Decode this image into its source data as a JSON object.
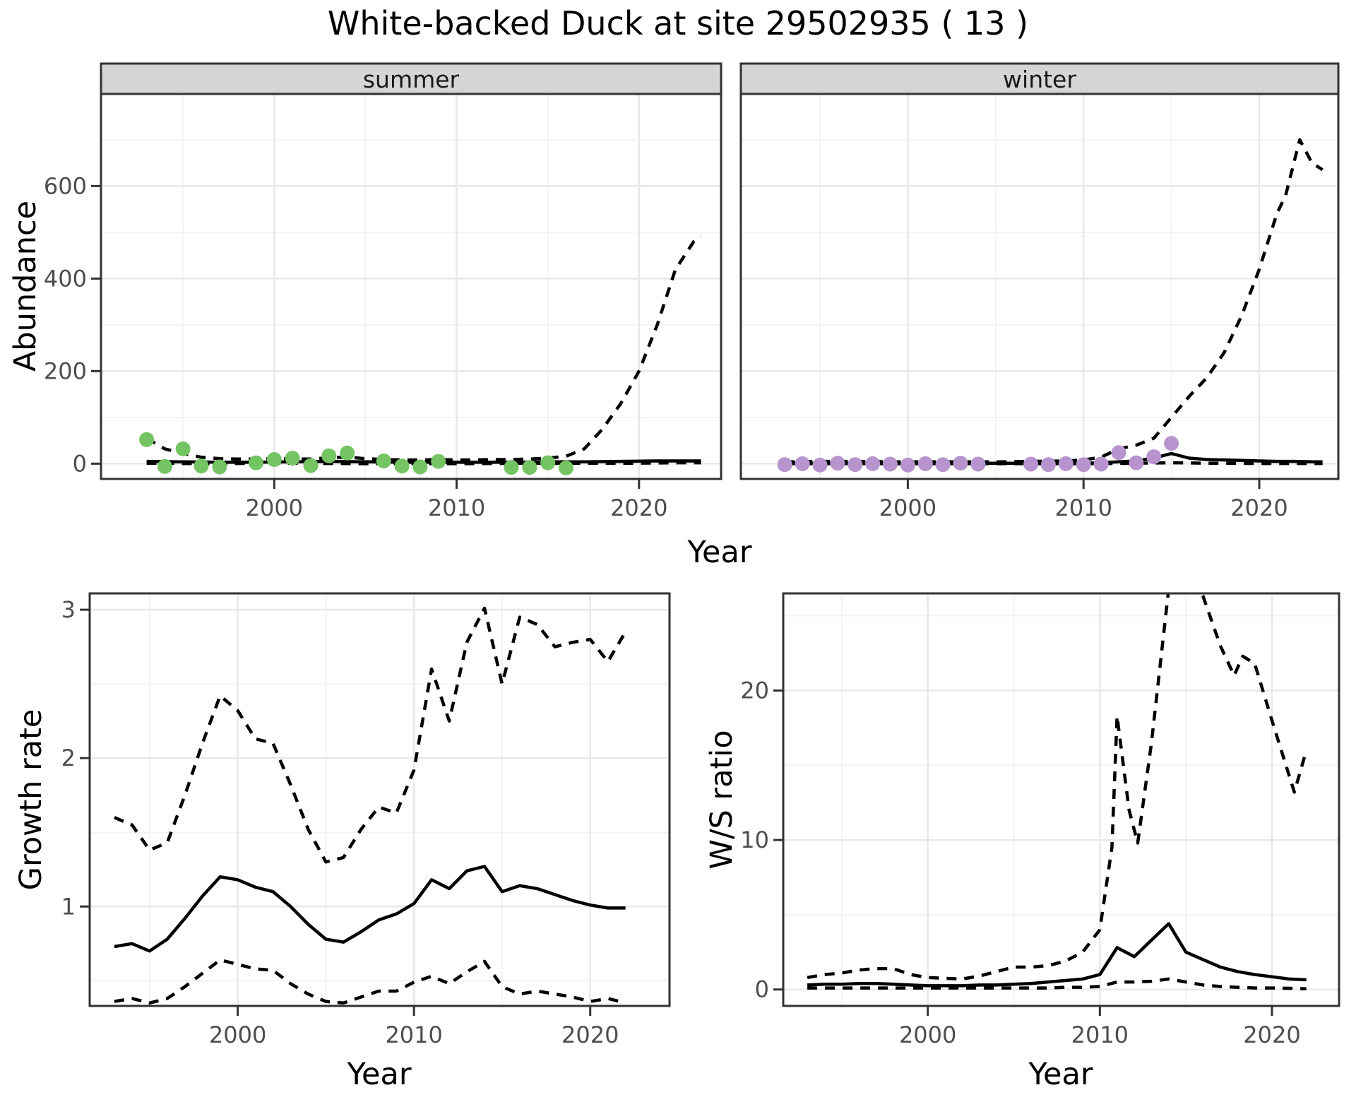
{
  "title": "White-backed Duck at site 29502935 ( 13 )",
  "facets": {
    "summer": "summer",
    "winter": "winter"
  },
  "axis_titles": {
    "abundance": "Abundance",
    "year_top": "Year",
    "growth_rate": "Growth rate",
    "year_growth": "Year",
    "ws_ratio": "W/S ratio",
    "year_ws": "Year"
  },
  "colors": {
    "summer_point": "#74C464",
    "winter_point": "#B794CE",
    "line": "#000000",
    "strip_fill": "#D5D5D5",
    "panel_border": "#333333",
    "grid_major": "#E8E8E8",
    "grid_minor": "#F2F2F2",
    "tick_text": "#4D4D4D"
  },
  "chart_data": [
    {
      "id": "abundance-summer",
      "type": "line",
      "facet_label": "summer",
      "ylabel": "Abundance",
      "xlabel": "Year",
      "xlim": [
        1990.5,
        2024.5
      ],
      "ylim": [
        -33,
        799
      ],
      "x_ticks": {
        "values": [
          2000,
          2010,
          2020
        ],
        "labels": [
          "2000",
          "2010",
          "2020"
        ]
      },
      "x_minor": [
        1995,
        2005,
        2015
      ],
      "y_ticks": {
        "values": [
          0,
          200,
          400,
          600
        ],
        "labels": [
          "0",
          "200",
          "400",
          "600"
        ],
        "show_labels": true
      },
      "y_minor": [
        100,
        300,
        500,
        700
      ],
      "grid": true,
      "legend": "none",
      "series": [
        {
          "name": "median",
          "style": "solid",
          "x": [
            1993,
            1995,
            1997,
            1999,
            2001,
            2003,
            2005,
            2007,
            2009,
            2011,
            2013,
            2015,
            2017,
            2019,
            2021,
            2023.4
          ],
          "y": [
            5,
            4,
            3,
            3,
            4,
            5,
            4,
            3,
            3,
            3,
            3,
            4,
            4,
            5,
            6,
            6
          ]
        },
        {
          "name": "upper-ci",
          "style": "dashed",
          "x": [
            1993,
            1994,
            1995,
            1996,
            1997,
            1998,
            1999,
            2000,
            2001,
            2002,
            2003,
            2004,
            2005,
            2006,
            2007,
            2008,
            2009,
            2010,
            2011,
            2012,
            2013,
            2014,
            2015,
            2016,
            2017,
            2018,
            2019,
            2020,
            2021,
            2022,
            2023,
            2023.4
          ],
          "y": [
            55,
            32,
            22,
            14,
            11,
            10,
            10,
            11,
            10,
            10,
            13,
            14,
            11,
            9,
            8,
            8,
            9,
            8,
            8,
            9,
            9,
            10,
            12,
            16,
            32,
            75,
            130,
            200,
            300,
            420,
            480,
            490
          ]
        },
        {
          "name": "lower-ci",
          "style": "dashed",
          "x": [
            1993,
            1996,
            2000,
            2005,
            2010,
            2015,
            2018,
            2020,
            2022,
            2023.4
          ],
          "y": [
            1,
            0,
            1,
            0,
            0,
            1,
            1,
            1,
            2,
            2
          ]
        }
      ],
      "points": {
        "name": "summer-observations",
        "color": "#74C464",
        "x": [
          1993,
          1994,
          1995,
          1996,
          1997,
          1999,
          2000,
          2001,
          2002,
          2003,
          2004,
          2006,
          2007,
          2008,
          2009,
          2013,
          2014,
          2015,
          2016
        ],
        "y": [
          52,
          -6,
          32,
          -5,
          -7,
          2,
          9,
          12,
          -4,
          17,
          23,
          6,
          -5,
          -7,
          5,
          -8,
          -8,
          2,
          -9
        ]
      }
    },
    {
      "id": "abundance-winter",
      "type": "line",
      "facet_label": "winter",
      "ylabel": "Abundance",
      "xlabel": "Year",
      "xlim": [
        1990.5,
        2024.5
      ],
      "ylim": [
        -33,
        799
      ],
      "x_ticks": {
        "values": [
          2000,
          2010,
          2020
        ],
        "labels": [
          "2000",
          "2010",
          "2020"
        ]
      },
      "x_minor": [
        1995,
        2005,
        2015
      ],
      "y_ticks": {
        "values": [
          0,
          200,
          400,
          600
        ],
        "labels": [
          "0",
          "200",
          "400",
          "600"
        ],
        "show_labels": false
      },
      "y_minor": [
        100,
        300,
        500,
        700
      ],
      "grid": true,
      "legend": "none",
      "series": [
        {
          "name": "median",
          "style": "solid",
          "x": [
            1993,
            1996,
            1999,
            2002,
            2005,
            2008,
            2010,
            2011,
            2012,
            2013,
            2014,
            2015,
            2016,
            2017,
            2018,
            2019,
            2020,
            2021,
            2022,
            2023,
            2023.6
          ],
          "y": [
            1,
            1,
            1,
            1,
            1,
            1,
            1,
            2,
            4,
            6,
            12,
            22,
            12,
            9,
            8,
            7,
            6,
            5,
            5,
            4,
            4
          ]
        },
        {
          "name": "upper-ci",
          "style": "dashed",
          "x": [
            1993,
            1995,
            1997,
            1999,
            2001,
            2003,
            2005,
            2007,
            2009,
            2010,
            2011,
            2012,
            2013,
            2014,
            2015,
            2016,
            2017,
            2018,
            2019,
            2020,
            2021,
            2021.5,
            2022.3,
            2023,
            2023.6
          ],
          "y": [
            4,
            5,
            5,
            4,
            4,
            4,
            4,
            5,
            6,
            8,
            14,
            32,
            40,
            55,
            100,
            145,
            185,
            240,
            320,
            420,
            540,
            580,
            700,
            650,
            635
          ]
        },
        {
          "name": "lower-ci",
          "style": "dashed",
          "x": [
            1993,
            1998,
            2003,
            2008,
            2011,
            2013,
            2015,
            2017,
            2020,
            2023.6
          ],
          "y": [
            0,
            0,
            0,
            0,
            0,
            1,
            2,
            1,
            0.5,
            0.5
          ]
        }
      ],
      "points": {
        "name": "winter-observations",
        "color": "#B794CE",
        "x": [
          1993,
          1994,
          1995,
          1996,
          1997,
          1998,
          1999,
          2000,
          2001,
          2002,
          2003,
          2004,
          2007,
          2008,
          2009,
          2010,
          2011,
          2012,
          2013,
          2014,
          2015
        ],
        "y": [
          -2,
          0,
          -3,
          1,
          -2,
          0,
          -1,
          -3,
          0,
          -2,
          1,
          -1,
          -1,
          -2,
          0,
          -2,
          -1,
          24,
          2,
          15,
          44
        ]
      }
    },
    {
      "id": "growth-rate",
      "type": "line",
      "facet_label": "",
      "ylabel": "Growth rate",
      "xlabel": "Year",
      "xlim": [
        1991.6,
        2024.5
      ],
      "ylim": [
        0.33,
        3.11
      ],
      "x_ticks": {
        "values": [
          2000,
          2010,
          2020
        ],
        "labels": [
          "2000",
          "2010",
          "2020"
        ]
      },
      "x_minor": [
        1995,
        2005,
        2015
      ],
      "y_ticks": {
        "values": [
          1,
          2,
          3
        ],
        "labels": [
          "1",
          "2",
          "3"
        ],
        "show_labels": true
      },
      "y_minor": [
        0.5,
        1.5,
        2.5
      ],
      "grid": true,
      "legend": "none",
      "series": [
        {
          "name": "median",
          "style": "solid",
          "x": [
            1993,
            1994,
            1995,
            1996,
            1997,
            1998,
            1999,
            2000,
            2001,
            2002,
            2003,
            2004,
            2005,
            2006,
            2007,
            2008,
            2009,
            2010,
            2011,
            2012,
            2013,
            2014,
            2015,
            2016,
            2017,
            2018,
            2019,
            2020,
            2021,
            2022
          ],
          "y": [
            0.73,
            0.75,
            0.7,
            0.78,
            0.92,
            1.07,
            1.2,
            1.18,
            1.13,
            1.1,
            1.0,
            0.88,
            0.78,
            0.76,
            0.83,
            0.91,
            0.95,
            1.02,
            1.18,
            1.12,
            1.24,
            1.27,
            1.1,
            1.14,
            1.12,
            1.08,
            1.04,
            1.01,
            0.99,
            0.99
          ]
        },
        {
          "name": "upper-ci",
          "style": "dashed",
          "x": [
            1993,
            1994,
            1995,
            1996,
            1997,
            1998,
            1999,
            2000,
            2001,
            2002,
            2003,
            2004,
            2005,
            2006,
            2007,
            2008,
            2009,
            2010,
            2011,
            2012,
            2013,
            2014,
            2015,
            2016,
            2017,
            2018,
            2019,
            2020,
            2021,
            2022
          ],
          "y": [
            1.6,
            1.55,
            1.38,
            1.43,
            1.75,
            2.1,
            2.42,
            2.32,
            2.13,
            2.1,
            1.82,
            1.52,
            1.3,
            1.33,
            1.52,
            1.67,
            1.63,
            1.92,
            2.6,
            2.25,
            2.78,
            3.01,
            2.5,
            2.95,
            2.9,
            2.75,
            2.78,
            2.8,
            2.65,
            2.85
          ]
        },
        {
          "name": "lower-ci",
          "style": "dashed",
          "x": [
            1993,
            1994,
            1995,
            1996,
            1997,
            1998,
            1999,
            2000,
            2001,
            2002,
            2003,
            2004,
            2005,
            2006,
            2007,
            2008,
            2009,
            2010,
            2011,
            2012,
            2013,
            2014,
            2015,
            2016,
            2017,
            2018,
            2019,
            2020,
            2021,
            2022
          ],
          "y": [
            0.36,
            0.38,
            0.35,
            0.38,
            0.46,
            0.55,
            0.64,
            0.61,
            0.58,
            0.57,
            0.48,
            0.41,
            0.36,
            0.35,
            0.39,
            0.43,
            0.43,
            0.49,
            0.53,
            0.48,
            0.56,
            0.63,
            0.46,
            0.41,
            0.43,
            0.41,
            0.39,
            0.36,
            0.38,
            0.35
          ]
        }
      ],
      "points": null
    },
    {
      "id": "ws-ratio",
      "type": "line",
      "facet_label": "",
      "ylabel": "W/S ratio",
      "xlabel": "Year",
      "xlim": [
        1991.6,
        2023.9
      ],
      "ylim": [
        -1.1,
        26.5
      ],
      "x_ticks": {
        "values": [
          2000,
          2010,
          2020
        ],
        "labels": [
          "2000",
          "2010",
          "2020"
        ]
      },
      "x_minor": [
        1995,
        2005,
        2015
      ],
      "y_ticks": {
        "values": [
          0,
          10,
          20
        ],
        "labels": [
          "0",
          "10",
          "20"
        ],
        "show_labels": true
      },
      "y_minor": [
        5,
        15,
        25
      ],
      "grid": true,
      "legend": "none",
      "series": [
        {
          "name": "median",
          "style": "solid",
          "x": [
            1993,
            1994,
            1995,
            1996,
            1997,
            1998,
            1999,
            2000,
            2001,
            2002,
            2003,
            2004,
            2005,
            2006,
            2007,
            2008,
            2009,
            2010,
            2011,
            2012,
            2013,
            2014,
            2015,
            2016,
            2017,
            2018,
            2019,
            2020,
            2021,
            2022
          ],
          "y": [
            0.3,
            0.35,
            0.35,
            0.4,
            0.4,
            0.35,
            0.3,
            0.25,
            0.25,
            0.25,
            0.3,
            0.3,
            0.35,
            0.4,
            0.5,
            0.6,
            0.7,
            1.0,
            2.8,
            2.2,
            3.3,
            4.4,
            2.5,
            2.0,
            1.5,
            1.2,
            1.0,
            0.85,
            0.7,
            0.65
          ]
        },
        {
          "name": "upper-ci",
          "style": "dashed",
          "x": [
            1993,
            1994,
            1995,
            1996,
            1997,
            1998,
            1999,
            2000,
            2001,
            2002,
            2003,
            2004,
            2005,
            2006,
            2007,
            2008,
            2009,
            2010,
            2010.7,
            2011,
            2011.7,
            2012.2,
            2013,
            2014,
            2015,
            2016,
            2017,
            2017.8,
            2018.3,
            2019,
            2020,
            2021.3,
            2022
          ],
          "y": [
            0.8,
            1.0,
            1.1,
            1.3,
            1.4,
            1.4,
            1.0,
            0.8,
            0.75,
            0.7,
            0.9,
            1.2,
            1.5,
            1.5,
            1.6,
            1.9,
            2.5,
            4.0,
            9.5,
            18.3,
            12.0,
            9.8,
            16.5,
            26.8,
            27.5,
            26.3,
            23.0,
            21.0,
            22.3,
            21.8,
            18.0,
            13.2,
            16.0
          ]
        },
        {
          "name": "lower-ci",
          "style": "dashed",
          "x": [
            1993,
            1994,
            1995,
            1996,
            1997,
            1998,
            1999,
            2000,
            2001,
            2002,
            2003,
            2004,
            2005,
            2006,
            2007,
            2008,
            2009,
            2010,
            2011,
            2012,
            2013,
            2014,
            2015,
            2016,
            2017,
            2018,
            2019,
            2020,
            2021,
            2022
          ],
          "y": [
            0.1,
            0.1,
            0.1,
            0.1,
            0.1,
            0.1,
            0.1,
            0.1,
            0.1,
            0.1,
            0.1,
            0.1,
            0.1,
            0.1,
            0.1,
            0.15,
            0.15,
            0.2,
            0.5,
            0.5,
            0.55,
            0.7,
            0.5,
            0.3,
            0.2,
            0.15,
            0.1,
            0.1,
            0.08,
            0.05
          ]
        }
      ],
      "points": null
    }
  ]
}
